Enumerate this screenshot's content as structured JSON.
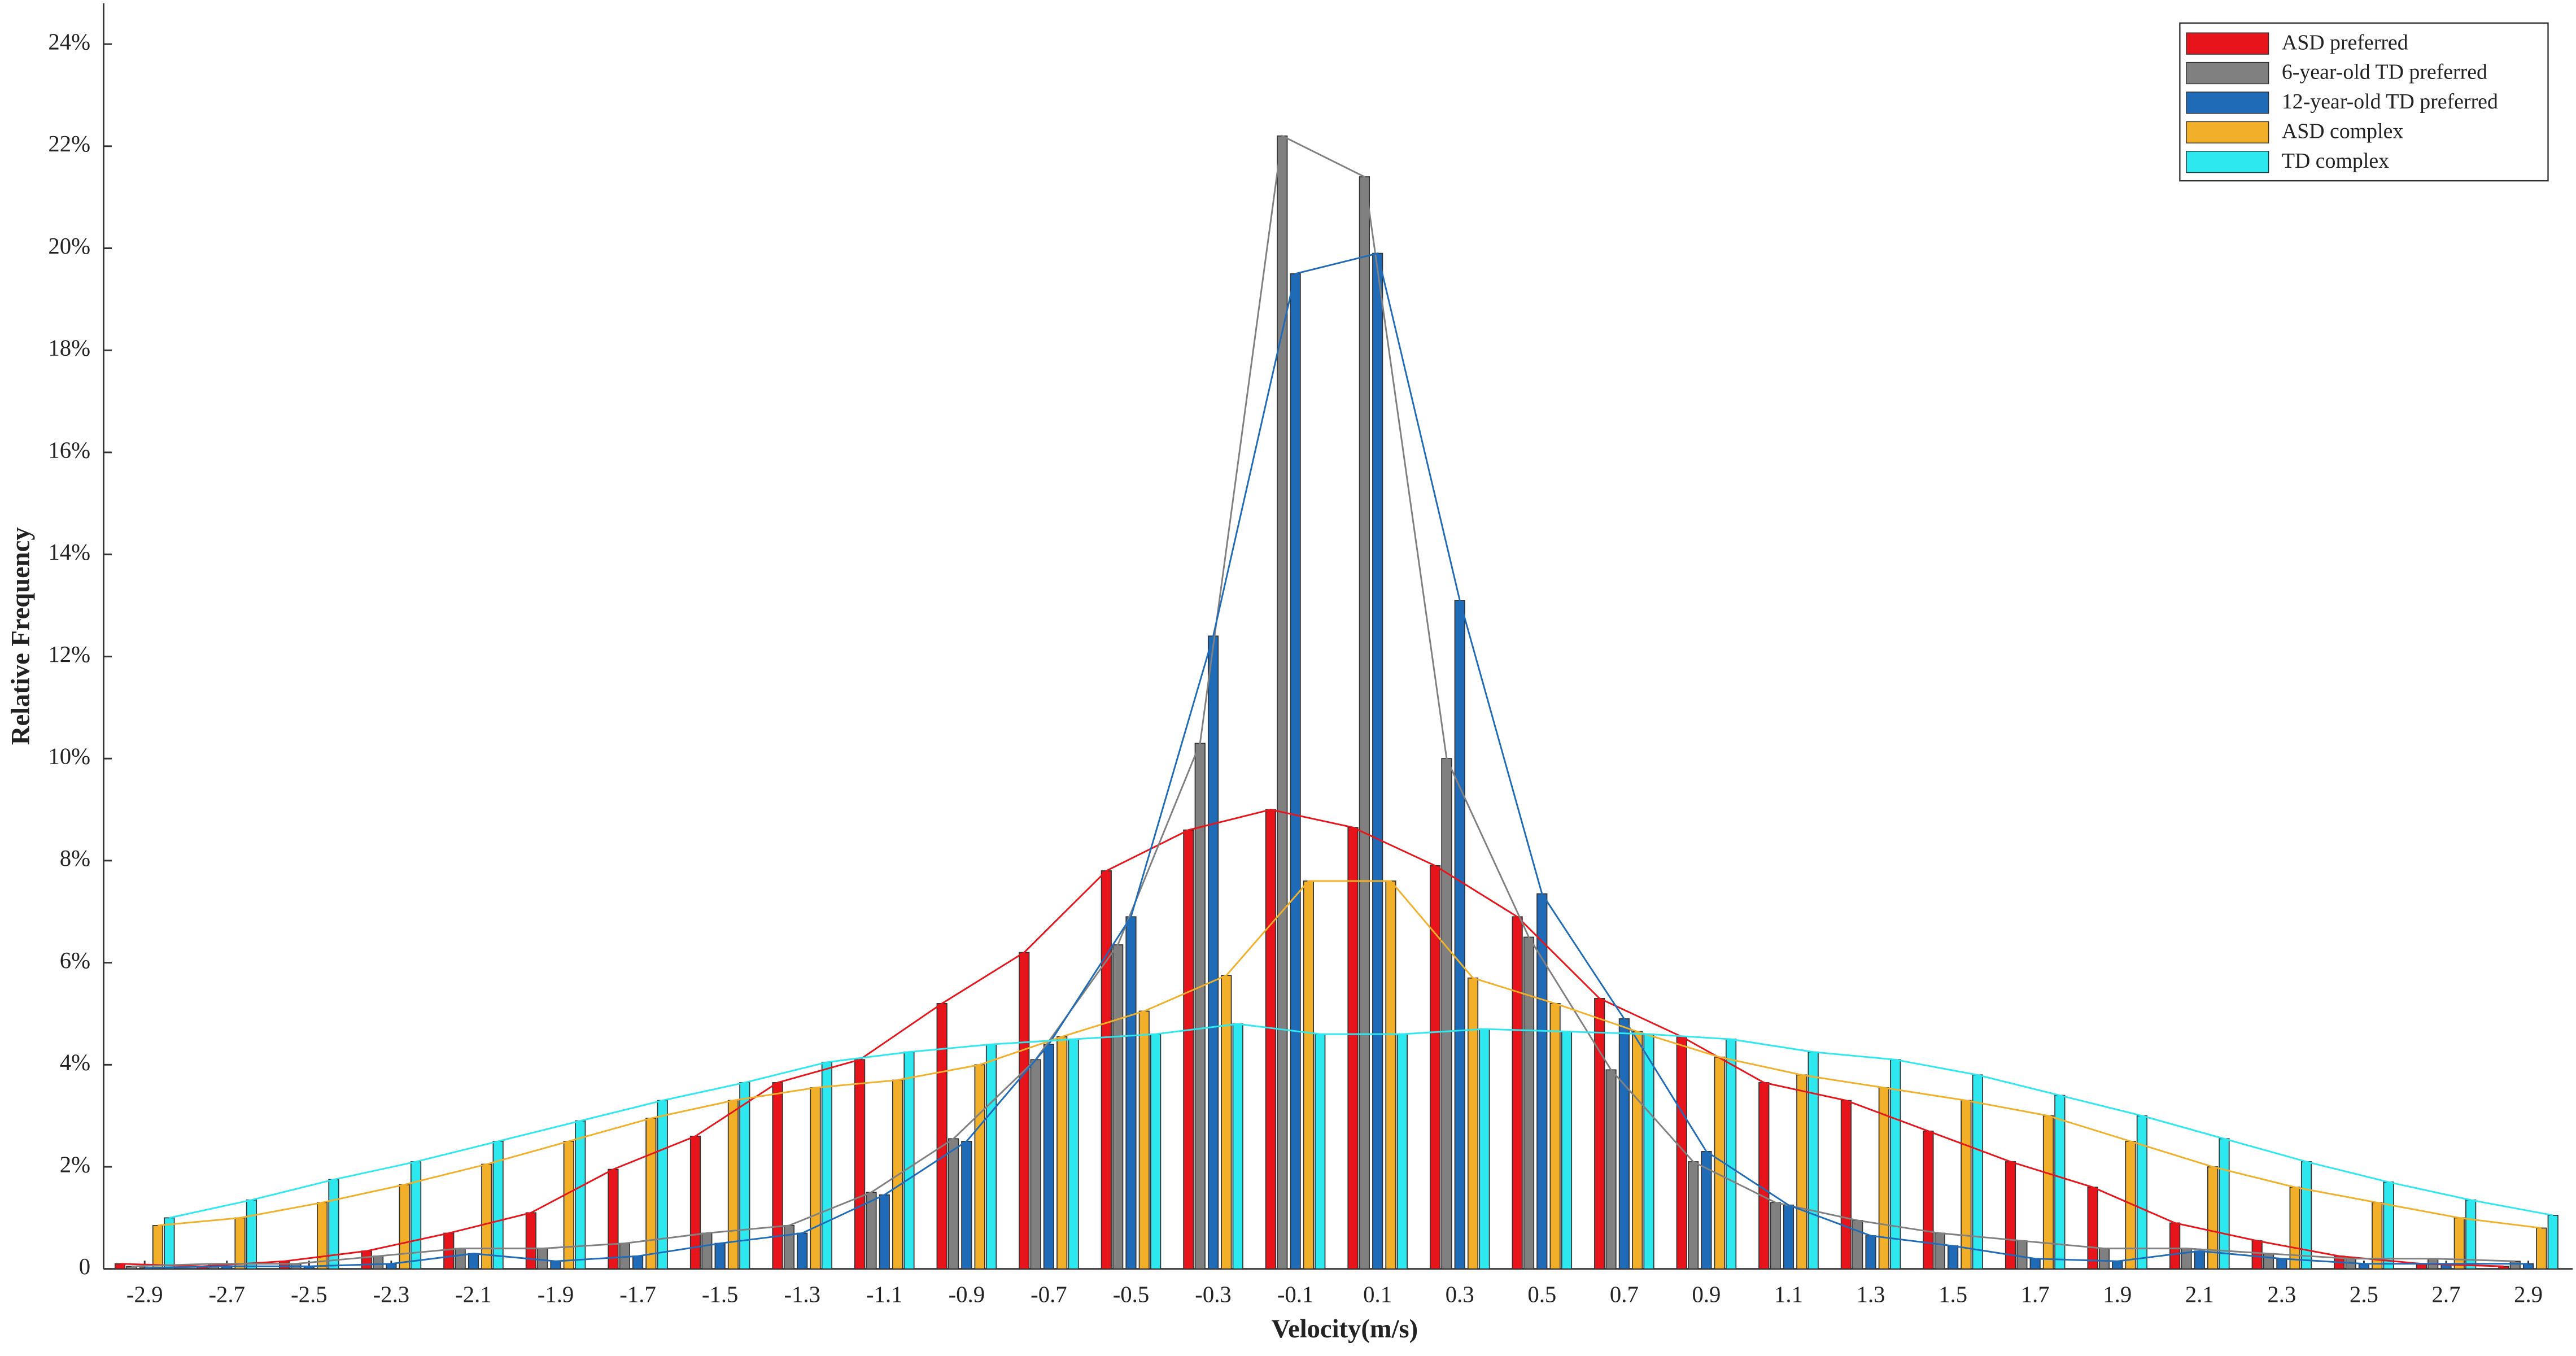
{
  "chart_data": {
    "type": "bar",
    "xlabel": "Velocity(m/s)",
    "ylabel": "Relative Frequency",
    "categories": [
      "-2.9",
      "-2.7",
      "-2.5",
      "-2.3",
      "-2.1",
      "-1.9",
      "-1.7",
      "-1.5",
      "-1.3",
      "-1.1",
      "-0.9",
      "-0.7",
      "-0.5",
      "-0.3",
      "-0.1",
      "0.1",
      "0.3",
      "0.5",
      "0.7",
      "0.9",
      "1.1",
      "1.3",
      "1.5",
      "1.7",
      "1.9",
      "2.1",
      "2.3",
      "2.5",
      "2.7",
      "2.9"
    ],
    "series": [
      {
        "name": "ASD preferred",
        "color": "#e8141b",
        "values": [
          0.1,
          0.05,
          0.15,
          0.35,
          0.7,
          1.1,
          1.95,
          2.6,
          3.65,
          4.1,
          5.2,
          6.2,
          7.8,
          8.6,
          9.0,
          8.65,
          7.9,
          6.9,
          5.3,
          4.55,
          3.65,
          3.3,
          2.7,
          2.1,
          1.6,
          0.9,
          0.55,
          0.25,
          0.1,
          0.05
        ]
      },
      {
        "name": "6-year-old TD preferred",
        "color": "#808080",
        "values": [
          0.05,
          0.1,
          0.1,
          0.25,
          0.4,
          0.4,
          0.5,
          0.7,
          0.85,
          1.5,
          2.55,
          4.1,
          6.35,
          10.3,
          22.2,
          21.4,
          10.0,
          6.5,
          3.9,
          2.1,
          1.3,
          0.95,
          0.7,
          0.55,
          0.4,
          0.4,
          0.3,
          0.2,
          0.2,
          0.15
        ]
      },
      {
        "name": "12-year-old TD preferred",
        "color": "#1f6bb8",
        "values": [
          0.02,
          0.05,
          0.05,
          0.1,
          0.3,
          0.15,
          0.25,
          0.5,
          0.7,
          1.45,
          2.5,
          4.4,
          6.9,
          12.4,
          19.5,
          19.9,
          13.1,
          7.35,
          4.9,
          2.3,
          1.25,
          0.65,
          0.45,
          0.2,
          0.15,
          0.35,
          0.2,
          0.1,
          0.1,
          0.1
        ]
      },
      {
        "name": "ASD complex",
        "color": "#f2b02a",
        "values": [
          0.85,
          1.0,
          1.3,
          1.65,
          2.05,
          2.5,
          2.95,
          3.3,
          3.55,
          3.7,
          4.0,
          4.55,
          5.05,
          5.75,
          7.6,
          7.6,
          5.7,
          5.2,
          4.65,
          4.15,
          3.8,
          3.55,
          3.3,
          3.0,
          2.5,
          2.0,
          1.6,
          1.3,
          1.0,
          0.8
        ]
      },
      {
        "name": "TD complex",
        "color": "#2ee8f0",
        "values": [
          1.0,
          1.35,
          1.75,
          2.1,
          2.5,
          2.9,
          3.3,
          3.65,
          4.05,
          4.25,
          4.4,
          4.5,
          4.6,
          4.8,
          4.6,
          4.6,
          4.7,
          4.65,
          4.6,
          4.5,
          4.25,
          4.1,
          3.8,
          3.4,
          3.0,
          2.55,
          2.1,
          1.7,
          1.35,
          1.05
        ]
      }
    ],
    "ylim": [
      0,
      24.8
    ],
    "yticks": [
      0,
      {
        "value": 2,
        "label": "2%"
      },
      {
        "value": 4,
        "label": "4%"
      },
      {
        "value": 6,
        "label": "6%"
      },
      {
        "value": 8,
        "label": "8%"
      },
      {
        "value": 10,
        "label": "10%"
      },
      {
        "value": 12,
        "label": "12%"
      },
      {
        "value": 14,
        "label": "14%"
      },
      {
        "value": 16,
        "label": "16%"
      },
      {
        "value": 18,
        "label": "18%"
      },
      {
        "value": 20,
        "label": "20%"
      },
      {
        "value": 22,
        "label": "22%"
      },
      {
        "value": 24,
        "label": "24%"
      }
    ],
    "legend": "top-right"
  }
}
